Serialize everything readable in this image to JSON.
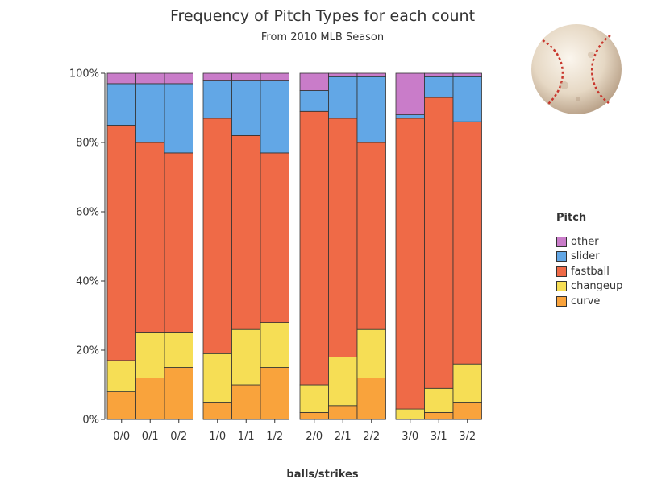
{
  "chart_data": {
    "type": "bar",
    "stacked": true,
    "percent": true,
    "title": "Frequency of Pitch Types for each count",
    "subtitle": "From 2010 MLB Season",
    "xlabel": "balls/strikes",
    "ylabel": "",
    "ylim": [
      0,
      100
    ],
    "y_ticks": [
      "0%",
      "20%",
      "40%",
      "60%",
      "80%",
      "100%"
    ],
    "groups": [
      [
        "0/0",
        "0/1",
        "0/2"
      ],
      [
        "1/0",
        "1/1",
        "1/2"
      ],
      [
        "2/0",
        "2/1",
        "2/2"
      ],
      [
        "3/0",
        "3/1",
        "3/2"
      ]
    ],
    "categories": [
      "0/0",
      "0/1",
      "0/2",
      "1/0",
      "1/1",
      "1/2",
      "2/0",
      "2/1",
      "2/2",
      "3/0",
      "3/1",
      "3/2"
    ],
    "series": [
      {
        "name": "curve",
        "color": "#f9a33c",
        "values": [
          8,
          12,
          15,
          5,
          10,
          15,
          2,
          4,
          12,
          0,
          2,
          5
        ]
      },
      {
        "name": "changeup",
        "color": "#f6de55",
        "values": [
          9,
          13,
          10,
          14,
          16,
          13,
          8,
          14,
          14,
          3,
          7,
          11
        ]
      },
      {
        "name": "fastball",
        "color": "#ef6a47",
        "values": [
          68,
          55,
          52,
          68,
          56,
          49,
          79,
          69,
          54,
          84,
          84,
          70
        ]
      },
      {
        "name": "slider",
        "color": "#62a7e6",
        "values": [
          12,
          17,
          20,
          11,
          16,
          21,
          6,
          12,
          19,
          1,
          6,
          13
        ]
      },
      {
        "name": "other",
        "color": "#c97cc9",
        "values": [
          3,
          3,
          3,
          2,
          2,
          2,
          5,
          1,
          1,
          12,
          1,
          1
        ]
      }
    ],
    "legend": {
      "title": "Pitch",
      "placement": "right",
      "order": [
        "other",
        "slider",
        "fastball",
        "changeup",
        "curve"
      ]
    },
    "grid": false
  }
}
